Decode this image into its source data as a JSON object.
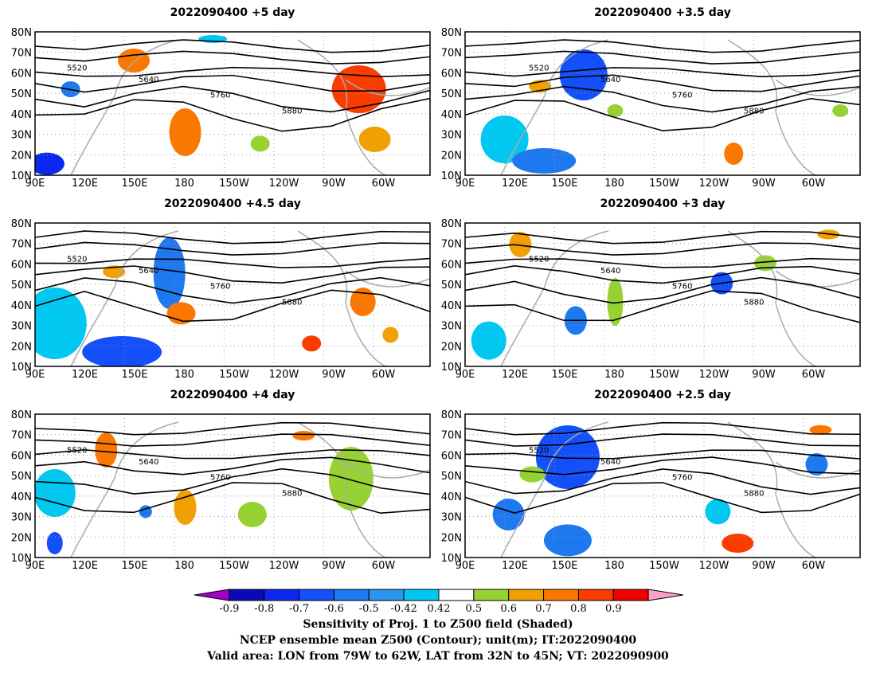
{
  "panels": [
    {
      "title": "2022090400 +5 day"
    },
    {
      "title": "2022090400 +3.5 day"
    },
    {
      "title": "2022090400 +4.5 day"
    },
    {
      "title": "2022090400 +3 day"
    },
    {
      "title": "2022090400 +4 day"
    },
    {
      "title": "2022090400 +2.5 day"
    }
  ],
  "axes": {
    "lat_labels": [
      "80N",
      "70N",
      "60N",
      "50N",
      "40N",
      "30N",
      "20N",
      "10N"
    ],
    "lon_labels": [
      "90E",
      "120E",
      "150E",
      "180",
      "150W",
      "120W",
      "90W",
      "60W"
    ]
  },
  "contour_levels": [
    "5520",
    "5640",
    "5760",
    "5880"
  ],
  "colorbar": {
    "labels": [
      "-0.9",
      "-0.8",
      "-0.7",
      "-0.6",
      "-0.5",
      "-0.42",
      "0.42",
      "0.5",
      "0.6",
      "0.7",
      "0.8",
      "0.9"
    ],
    "colors": [
      "#a000c8",
      "#0a0ab4",
      "#0a28f0",
      "#1450fa",
      "#1e78f0",
      "#2896f0",
      "#00c8f0",
      "#ffffff",
      "#96d232",
      "#f0a000",
      "#fa7800",
      "#fa3c00",
      "#f00000",
      "#ffa0c8"
    ]
  },
  "caption": {
    "line1": "Sensitivity of Proj. 1 to Z500 field (Shaded)",
    "line2": "NCEP ensemble mean Z500 (Contour); unit(m); IT:2022090400",
    "line3": "Valid area: LON from 79W to 62W, LAT from 32N to 45N; VT: 2022090900"
  }
}
